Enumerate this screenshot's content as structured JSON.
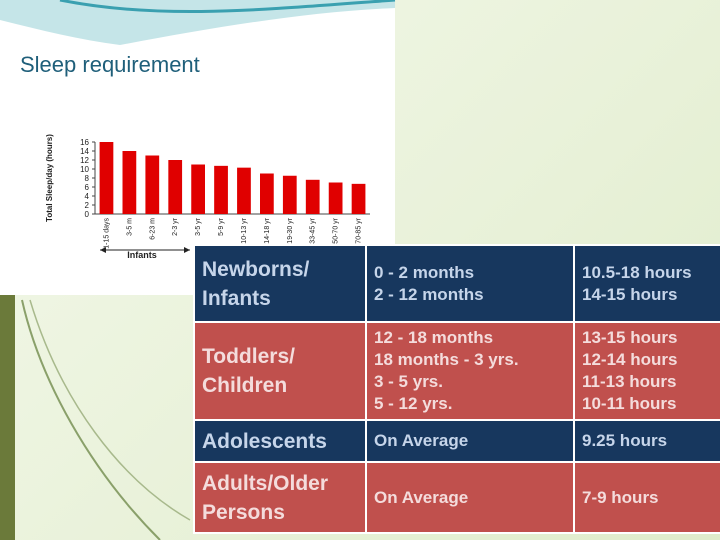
{
  "title": "Sleep requirement",
  "chart_data": {
    "type": "bar",
    "ylabel": "Total Sleep/day (hours)",
    "categories": [
      "1-15 days",
      "3-5 m",
      "6-23 m",
      "2-3 yr",
      "3-5 yr",
      "5-9 yr",
      "10-13 yr",
      "14-18 yr",
      "19-30 yr",
      "33-45 yr",
      "50-70 yr",
      "70-85 yr"
    ],
    "values": [
      16,
      14,
      13,
      12,
      11,
      10.7,
      10.3,
      9,
      8.5,
      7.6,
      7,
      6.7
    ],
    "color": "#e00000",
    "ylim": [
      0,
      16
    ],
    "yticks": [
      0,
      2,
      4,
      6,
      8,
      10,
      12,
      14,
      16
    ],
    "annotation": "Infants"
  },
  "table": {
    "rows": [
      {
        "group": "Newborns/ Infants",
        "ages": [
          "0 - 2 months",
          "2 - 12 months"
        ],
        "hours": [
          "10.5-18 hours",
          "14-15 hours"
        ]
      },
      {
        "group": "Toddlers/ Children",
        "ages": [
          "12 - 18 months",
          "18 months - 3 yrs.",
          "3 - 5 yrs.",
          "5 - 12 yrs."
        ],
        "hours": [
          "13-15 hours",
          "12-14 hours",
          "11-13 hours",
          "10-11 hours"
        ]
      },
      {
        "group": "Adolescents",
        "ages": [
          "On Average"
        ],
        "hours": [
          "9.25 hours"
        ]
      },
      {
        "group": "Adults/Older Persons",
        "ages": [
          "On Average"
        ],
        "hours": [
          "7-9 hours"
        ]
      }
    ]
  }
}
